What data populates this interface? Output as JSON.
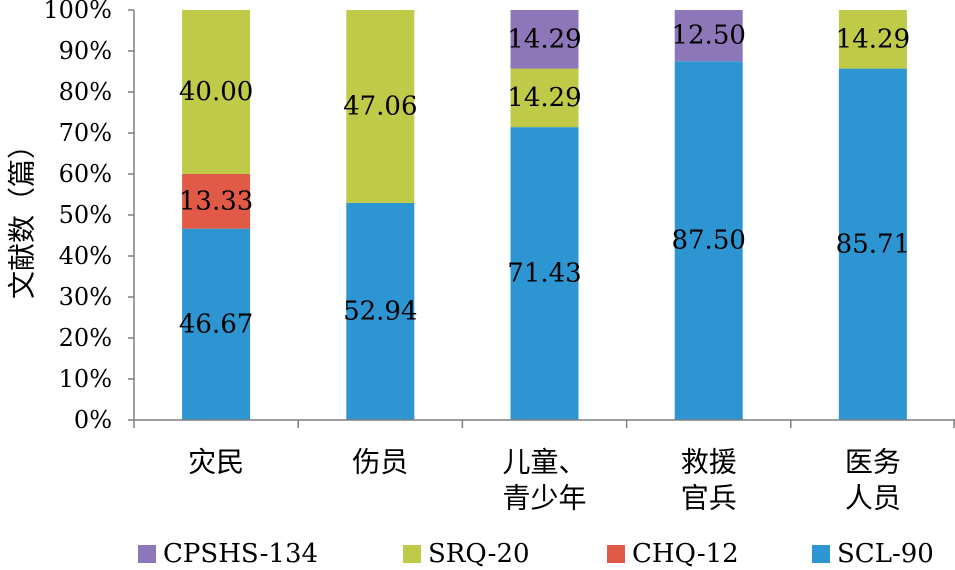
{
  "chart_data": {
    "type": "bar",
    "stacked": true,
    "percent_stacked": true,
    "ylabel": "文献数（篇）",
    "ylim": [
      0,
      100
    ],
    "y_ticks": [
      "0%",
      "10%",
      "20%",
      "30%",
      "40%",
      "50%",
      "60%",
      "70%",
      "80%",
      "90%",
      "100%"
    ],
    "grid": false,
    "legend_position": "bottom",
    "categories": [
      [
        "灾民"
      ],
      [
        "伤员"
      ],
      [
        "儿童、",
        "青少年"
      ],
      [
        "救援",
        "官兵"
      ],
      [
        "医务",
        "人员"
      ]
    ],
    "series": [
      {
        "name": "SCL-90",
        "color": "#2E95D3",
        "values": [
          46.67,
          52.94,
          71.43,
          87.5,
          85.71
        ],
        "labels": [
          "46.67",
          "52.94",
          "71.43",
          "87.50",
          "85.71"
        ]
      },
      {
        "name": "CHQ-12",
        "color": "#E05A47",
        "values": [
          13.33,
          0,
          0,
          0,
          0
        ],
        "labels": [
          "13.33",
          "",
          "",
          "",
          ""
        ]
      },
      {
        "name": "SRQ-20",
        "color": "#BFCB48",
        "values": [
          40.0,
          47.06,
          14.29,
          0,
          14.29
        ],
        "labels": [
          "40.00",
          "47.06",
          "14.29",
          "",
          "14.29"
        ]
      },
      {
        "name": "CPSHS-134",
        "color": "#8E77B9",
        "values": [
          0,
          0,
          14.29,
          12.5,
          0
        ],
        "labels": [
          "",
          "",
          "14.29",
          "12.50",
          ""
        ]
      }
    ],
    "legend_order": [
      "CPSHS-134",
      "SRQ-20",
      "CHQ-12",
      "SCL-90"
    ]
  }
}
